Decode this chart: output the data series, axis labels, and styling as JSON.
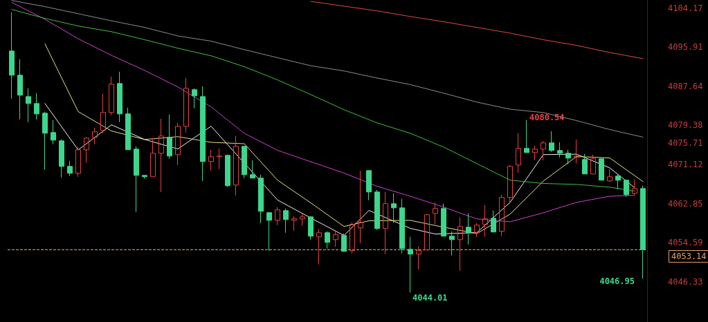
{
  "chart_data": {
    "type": "candlestick",
    "categories": [
      null,
      null,
      null,
      null,
      null,
      null,
      null,
      null,
      null,
      null,
      null,
      null,
      null,
      null,
      null,
      null,
      null,
      null,
      null,
      null,
      null,
      null,
      null,
      null,
      null,
      null,
      null,
      null,
      null,
      null,
      null,
      null,
      null,
      null,
      null,
      null,
      null,
      null,
      null,
      null,
      null,
      null,
      null,
      null,
      null,
      null,
      null,
      null,
      null,
      null,
      null,
      null,
      null,
      null,
      null,
      null,
      null,
      null,
      null,
      null,
      null,
      null,
      null,
      null,
      null,
      null,
      null,
      null,
      null,
      null,
      null,
      null,
      null,
      null,
      null,
      null,
      null
    ],
    "colors": [
      "#3dd68c",
      "#3dd68c",
      "#3dd68c",
      "#3dd68c",
      "#3dd68c",
      "#3dd68c",
      "#3dd68c",
      "#3dd68c",
      "#e8403f",
      "#e8403f",
      "#e8403f",
      "#e8403f",
      "#e8403f",
      "#3dd68c",
      "#3dd68c",
      "#3dd68c",
      "#3dd68c",
      "#e8403f",
      "#e8403f",
      "#3dd68c",
      "#e8403f",
      "#e8403f",
      "#3dd68c",
      "#3dd68c",
      "#e8403f",
      "#e8403f",
      "#3dd68c",
      "#e8403f",
      "#3dd68c",
      "#3dd68c",
      "#3dd68c",
      "#3dd68c",
      "#e8403f",
      "#3dd68c",
      "#e8403f",
      "#e8403f",
      "#3dd68c",
      "#e8403f",
      "#3dd68c",
      "#e8403f",
      "#3dd68c",
      "#e8403f",
      "#e8403f",
      "#3dd68c",
      "#3dd68c",
      "#e8403f",
      "#3dd68c",
      "#3dd68c",
      "#3dd68c",
      "#e8403f",
      "#e8403f",
      "#e8403f",
      "#3dd68c",
      "#3dd68c",
      "#e8403f",
      "#3dd68c",
      "#e8403f",
      "#e8403f",
      "#3dd68c",
      "#e8403f",
      "#e8403f",
      "#e8403f",
      "#3dd68c",
      "#e8403f",
      "#e8403f",
      "#3dd68c",
      "#3dd68c",
      "#3dd68c",
      "#e8403f",
      "#3dd68c",
      "#e8403f",
      "#3dd68c",
      "#e8403f",
      "#3dd68c",
      "#3dd68c",
      "#e8403f",
      "#3dd68c"
    ],
    "ohlc": [
      [
        4095.11,
        4103.29,
        4085.03,
        4090.0
      ],
      [
        4090.0,
        4093.36,
        4080.64,
        4085.76
      ],
      [
        4085.47,
        4087.22,
        4080.06,
        4084.0
      ],
      [
        4084.0,
        4086.2,
        4080.64,
        4081.81
      ],
      [
        4081.96,
        4082.25,
        4069.98,
        4077.72
      ],
      [
        4077.87,
        4080.5,
        4075.39,
        4076.26
      ],
      [
        4076.12,
        4076.41,
        4068.37,
        4070.71
      ],
      [
        4070.71,
        4071.88,
        4068.66,
        4069.25
      ],
      [
        4069.25,
        4074.8,
        4068.52,
        4074.22
      ],
      [
        4074.22,
        4076.85,
        4071.44,
        4076.7
      ],
      [
        4076.85,
        4078.89,
        4075.39,
        4078.02
      ],
      [
        4078.31,
        4086.05,
        4077.72,
        4082.11
      ],
      [
        4082.11,
        4089.7,
        4081.52,
        4088.1
      ],
      [
        4088.24,
        4090.73,
        4080.06,
        4081.81
      ],
      [
        4081.81,
        4083.13,
        4074.22,
        4074.22
      ],
      [
        4074.36,
        4074.95,
        4061.07,
        4068.81
      ],
      [
        4068.81,
        4068.81,
        4068.08,
        4068.52
      ],
      [
        4068.52,
        4076.7,
        4068.52,
        4073.49
      ],
      [
        4073.49,
        4080.79,
        4065.3,
        4077.14
      ],
      [
        4076.85,
        4081.67,
        4072.32,
        4072.9
      ],
      [
        4073.19,
        4079.91,
        4071.0,
        4079.18
      ],
      [
        4079.18,
        4089.41,
        4077.87,
        4087.22
      ],
      [
        4086.93,
        4087.22,
        4082.98,
        4085.61
      ],
      [
        4085.47,
        4087.66,
        4067.64,
        4071.73
      ],
      [
        4071.73,
        4074.22,
        4069.83,
        4072.76
      ],
      [
        4072.76,
        4074.51,
        4070.13,
        4072.9
      ],
      [
        4073.05,
        4073.19,
        4066.33,
        4066.62
      ],
      [
        4066.77,
        4077.14,
        4064.57,
        4074.95
      ],
      [
        4074.95,
        4074.95,
        4068.23,
        4068.96
      ],
      [
        4068.96,
        4072.02,
        4068.23,
        4068.23
      ],
      [
        4068.23,
        4068.96,
        4058.73,
        4061.21
      ],
      [
        4060.92,
        4061.07,
        4052.89,
        4059.31
      ],
      [
        4059.31,
        4062.09,
        4058.29,
        4061.51
      ],
      [
        4061.36,
        4061.8,
        4056.68,
        4059.46
      ],
      [
        4059.31,
        4060.19,
        4057.12,
        4059.61
      ],
      [
        4059.61,
        4060.63,
        4058.15,
        4060.04
      ],
      [
        4060.04,
        4060.19,
        4055.22,
        4055.95
      ],
      [
        4055.81,
        4057.41,
        4049.96,
        4056.68
      ],
      [
        4056.68,
        4056.98,
        4053.32,
        4054.64
      ],
      [
        4055.22,
        4057.27,
        4053.76,
        4056.25
      ],
      [
        4056.1,
        4056.54,
        4052.74,
        4052.74
      ],
      [
        4052.89,
        4058.88,
        4052.3,
        4058.44
      ],
      [
        4057.71,
        4069.83,
        4054.49,
        4058.88
      ],
      [
        4069.83,
        4069.83,
        4063.55,
        4065.3
      ],
      [
        4065.3,
        4065.74,
        4057.27,
        4057.56
      ],
      [
        4057.56,
        4065.3,
        4052.16,
        4062.82
      ],
      [
        4062.82,
        4065.01,
        4058.73,
        4061.94
      ],
      [
        4061.94,
        4063.84,
        4052.3,
        4053.32
      ],
      [
        4053.18,
        4055.81,
        4044.01,
        4052.16
      ],
      [
        4052.16,
        4053.76,
        4048.94,
        4052.89
      ],
      [
        4053.03,
        4060.63,
        4053.03,
        4060.48
      ],
      [
        4060.78,
        4063.11,
        4058.44,
        4061.8
      ],
      [
        4061.8,
        4062.82,
        4055.95,
        4055.95
      ],
      [
        4055.95,
        4056.98,
        4051.86,
        4055.22
      ],
      [
        4055.22,
        4059.9,
        4048.65,
        4058.0
      ],
      [
        4057.85,
        4060.78,
        4054.2,
        4056.68
      ],
      [
        4056.68,
        4058.73,
        4055.81,
        4058.29
      ],
      [
        4058.44,
        4062.53,
        4055.81,
        4059.61
      ],
      [
        4059.75,
        4061.36,
        4056.83,
        4056.83
      ],
      [
        4056.98,
        4064.72,
        4055.95,
        4064.14
      ],
      [
        4064.14,
        4071.0,
        4062.82,
        4070.71
      ],
      [
        4071.0,
        4077.72,
        4069.39,
        4074.51
      ],
      [
        4074.51,
        4080.54,
        4073.63,
        4073.63
      ],
      [
        4073.63,
        4075.09,
        4072.02,
        4074.36
      ],
      [
        4074.36,
        4076.12,
        4072.02,
        4075.68
      ],
      [
        4075.68,
        4078.16,
        4073.78,
        4074.07
      ],
      [
        4074.07,
        4075.82,
        4072.61,
        4073.49
      ],
      [
        4073.49,
        4074.22,
        4071.15,
        4072.46
      ],
      [
        4072.61,
        4076.41,
        4071.29,
        4072.9
      ],
      [
        4072.17,
        4073.34,
        4069.1,
        4069.1
      ],
      [
        4069.1,
        4073.19,
        4069.1,
        4072.32
      ],
      [
        4072.32,
        4072.46,
        4067.79,
        4067.79
      ],
      [
        4067.64,
        4070.13,
        4067.5,
        4068.52
      ],
      [
        4068.66,
        4069.1,
        4065.89,
        4067.79
      ],
      [
        4067.79,
        4067.93,
        4064.28,
        4064.72
      ],
      [
        4065.01,
        4067.93,
        4064.72,
        4066.03
      ],
      [
        4066.03,
        4066.62,
        4046.95,
        4053.14
      ]
    ],
    "series": [
      {
        "type": "line",
        "color": "#f0f0f0",
        "values": [
          null,
          null,
          null,
          null,
          4084.0,
          null,
          null,
          null,
          4074.2,
          null,
          null,
          null,
          4079.5,
          null,
          null,
          null,
          4076.4,
          null,
          null,
          null,
          4074.4,
          null,
          null,
          null,
          4079.2,
          null,
          null,
          null,
          null,
          null,
          null,
          null,
          4063.6,
          null,
          null,
          null,
          4059.8,
          null,
          null,
          null,
          4056.1,
          null,
          null,
          4061.4,
          null,
          null,
          null,
          null,
          4057.6,
          null,
          null,
          4056.4,
          null,
          null,
          null,
          null,
          4056.7,
          null,
          null,
          null,
          4063.1,
          null,
          null,
          null,
          4073.2,
          null,
          null,
          null,
          4073.3,
          null,
          null,
          null,
          4070.4,
          null,
          null,
          4066.2,
          null
        ]
      },
      {
        "type": "line",
        "color": "#e6df82",
        "values": [
          null,
          null,
          null,
          null,
          4096.6,
          null,
          null,
          null,
          4082.3,
          null,
          null,
          null,
          4078.2,
          null,
          null,
          null,
          4076.4,
          null,
          null,
          null,
          4077.0,
          null,
          null,
          null,
          4075.8,
          null,
          null,
          null,
          4075.5,
          null,
          null,
          null,
          4067.8,
          null,
          null,
          null,
          4063.0,
          null,
          null,
          null,
          4058.0,
          null,
          null,
          4059.2,
          null,
          null,
          null,
          null,
          4059.3,
          null,
          null,
          4058.2,
          null,
          null,
          null,
          null,
          4056.5,
          null,
          null,
          null,
          4060.6,
          null,
          null,
          null,
          4067.6,
          null,
          null,
          null,
          4072.8,
          null,
          null,
          null,
          4072.5,
          null,
          null,
          null,
          4067.5
        ]
      },
      {
        "type": "line",
        "color": "#d040d0",
        "values": [
          4105.4,
          null,
          null,
          null,
          4101.8,
          null,
          null,
          null,
          4097.7,
          null,
          null,
          null,
          4094.2,
          null,
          null,
          null,
          4091.0,
          null,
          null,
          null,
          4087.5,
          null,
          null,
          null,
          4083.3,
          null,
          null,
          null,
          4077.7,
          null,
          null,
          null,
          4074.1,
          null,
          null,
          null,
          null,
          null,
          null,
          null,
          4069.3,
          null,
          null,
          null,
          4066.5,
          null,
          null,
          null,
          4064.4,
          null,
          null,
          null,
          4062.1,
          null,
          null,
          null,
          4059.6,
          null,
          null,
          null,
          4059.0,
          null,
          null,
          null,
          4060.9,
          null,
          null,
          null,
          4063.1,
          null,
          null,
          null,
          4064.4,
          null,
          null,
          4064.6,
          null
        ]
      },
      {
        "type": "line",
        "color": "#3fbf3f",
        "values": [
          4103.9,
          null,
          null,
          null,
          4102.0,
          null,
          null,
          null,
          4100.4,
          null,
          null,
          null,
          4099.2,
          null,
          null,
          null,
          4097.5,
          null,
          null,
          null,
          4095.7,
          null,
          null,
          null,
          4094.1,
          null,
          null,
          null,
          4091.8,
          null,
          null,
          null,
          4089.0,
          null,
          null,
          null,
          4085.9,
          null,
          null,
          null,
          4082.7,
          null,
          null,
          null,
          4079.9,
          null,
          null,
          null,
          4077.7,
          null,
          null,
          null,
          4074.8,
          null,
          null,
          null,
          4071.3,
          null,
          null,
          null,
          4067.8,
          null,
          null,
          null,
          4067.1,
          null,
          null,
          null,
          4066.9,
          null,
          null,
          null,
          4066.3,
          null,
          null,
          4065.5,
          null
        ]
      },
      {
        "type": "line",
        "color": "#8c8c8c",
        "values": [
          4105.8,
          null,
          null,
          null,
          4104.5,
          null,
          null,
          null,
          4103.0,
          null,
          null,
          null,
          4101.5,
          null,
          null,
          null,
          4100.1,
          null,
          null,
          null,
          4098.3,
          null,
          null,
          null,
          4097.2,
          null,
          null,
          null,
          4095.4,
          null,
          null,
          null,
          4093.7,
          null,
          null,
          null,
          4092.0,
          null,
          null,
          null,
          4090.9,
          null,
          null,
          null,
          4089.4,
          null,
          null,
          null,
          4088.0,
          null,
          null,
          null,
          4086.2,
          null,
          null,
          null,
          4084.3,
          null,
          null,
          null,
          4082.8,
          null,
          null,
          null,
          4082.1,
          null,
          null,
          null,
          4080.4,
          null,
          null,
          null,
          4078.5,
          null,
          null,
          null,
          4076.9
        ]
      },
      {
        "type": "line",
        "color": "#e04a3a",
        "values": [
          null,
          null,
          null,
          null,
          null,
          null,
          null,
          null,
          null,
          null,
          null,
          null,
          null,
          null,
          null,
          null,
          null,
          null,
          null,
          null,
          null,
          null,
          null,
          null,
          null,
          null,
          null,
          null,
          null,
          null,
          null,
          null,
          null,
          null,
          null,
          null,
          4105.6,
          null,
          null,
          null,
          4104.6,
          null,
          null,
          null,
          4103.6,
          null,
          null,
          null,
          4102.4,
          null,
          null,
          null,
          4101.3,
          null,
          null,
          null,
          4100.1,
          null,
          null,
          null,
          4098.9,
          null,
          null,
          null,
          4097.5,
          null,
          null,
          null,
          4096.3,
          null,
          null,
          null,
          4094.8,
          null,
          null,
          null,
          4093.5
        ]
      }
    ],
    "ylim": [
      4037.8,
      4105.9
    ],
    "yticks": [
      4104.17,
      4095.91,
      4087.64,
      4079.38,
      4075.71,
      4071.12,
      4062.85,
      4054.59,
      4046.33
    ],
    "ref_lines": [
      {
        "axis": "y",
        "value": 4053.14,
        "label": "4053.14",
        "color": "#e8a060",
        "line_style": "dashed"
      }
    ],
    "annotations": [
      "4080.54",
      "4044.01",
      "4046.95"
    ],
    "grid": false,
    "marker": "none",
    "line_style": "solid"
  }
}
